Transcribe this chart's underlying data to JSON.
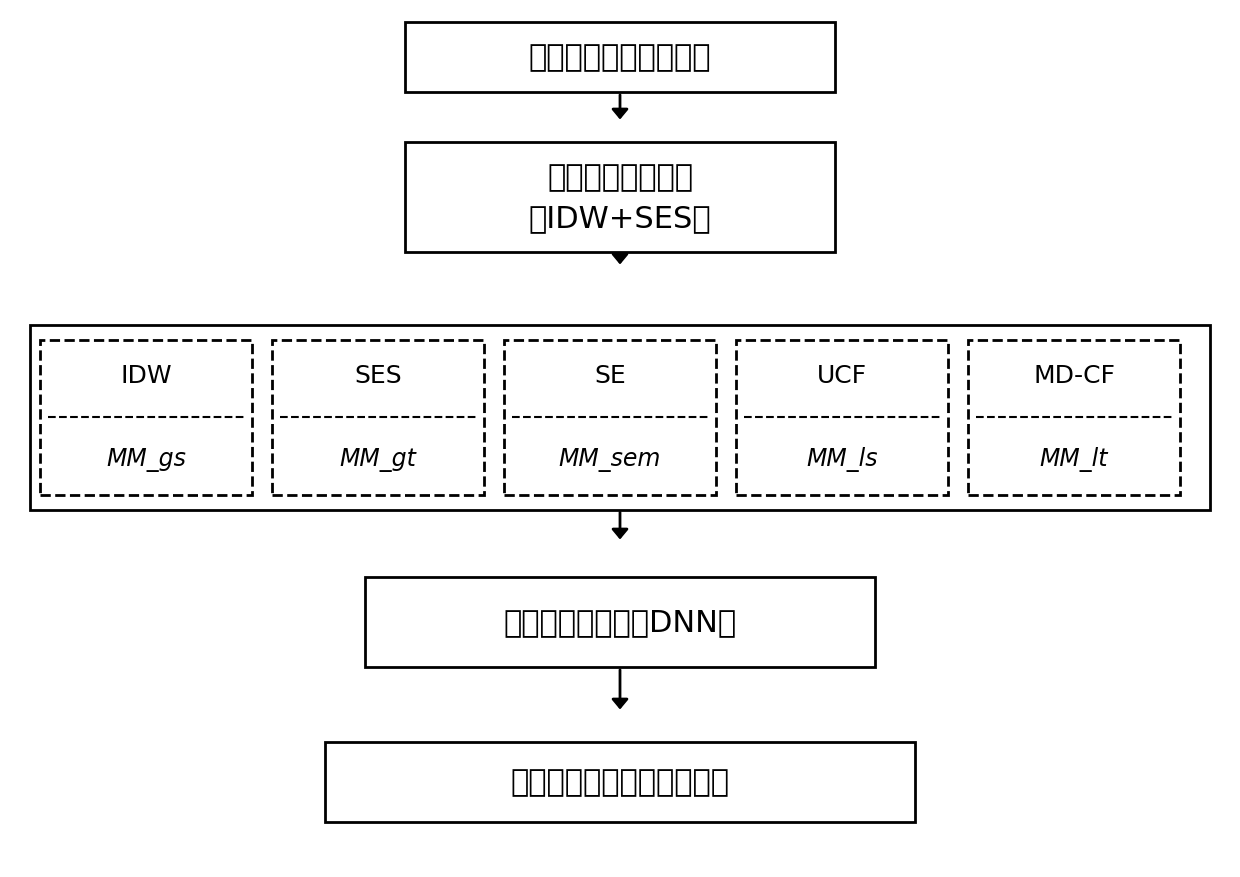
{
  "background_color": "#ffffff",
  "text_color": "#000000",
  "box1_text": "时空变形监测数据序列",
  "box2_text": "连续性缺失预处理\n（IDW+SES）",
  "box4_text": "多视图融合学习（DNN）",
  "box5_text": "完整时空变形监测数据序列",
  "inner_labels_top": [
    "IDW",
    "SES",
    "SE",
    "UCF",
    "MD-CF"
  ],
  "inner_labels_bottom": [
    "MM_gs",
    "MM_gt",
    "MM_sem",
    "MM_ls",
    "MM_lt"
  ]
}
